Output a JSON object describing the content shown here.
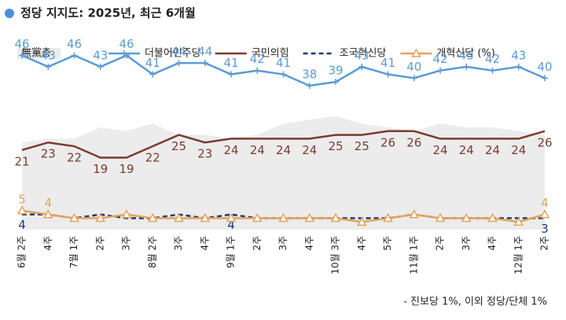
{
  "chart_data": {
    "type": "line",
    "title": "정당 지지도: 2025년, 최근 6개월",
    "footnote": "- 진보당 1%, 이외 정당/단체 1%",
    "categories": [
      "6월 2주",
      "4주",
      "7월 1주",
      "2주",
      "3주",
      "8월 2주",
      "3주",
      "4주",
      "9월 1주",
      "2주",
      "3주",
      "4주",
      "10월 3주",
      "4주",
      "5주",
      "11월 1주",
      "2주",
      "3주",
      "4주",
      "12월 1주",
      "2주"
    ],
    "ylim": [
      0,
      49
    ],
    "series": [
      {
        "name": "無黨층",
        "type": "area",
        "color": "#ececec",
        "values": [
          23,
          24,
          24,
          27,
          26,
          28,
          25,
          25,
          24,
          25,
          28,
          29,
          30,
          28,
          27,
          26,
          28,
          27,
          27,
          26,
          25
        ]
      },
      {
        "name": "더불어민주당",
        "color": "#5b9bd5",
        "marker": "plus",
        "values": [
          46,
          43,
          46,
          43,
          46,
          41,
          44,
          44,
          41,
          42,
          41,
          38,
          39,
          43,
          41,
          40,
          42,
          43,
          42,
          43,
          40
        ],
        "value_labels": [
          "46",
          "43",
          "46",
          "43",
          "46",
          "41",
          "44",
          "44",
          "41",
          "42",
          "41",
          "38",
          "39",
          "43",
          "41",
          "40",
          "42",
          "43",
          "42",
          "43",
          "40"
        ]
      },
      {
        "name": "국민의힘",
        "color": "#7b3b30",
        "values": [
          21,
          23,
          22,
          19,
          19,
          22,
          25,
          23,
          24,
          24,
          24,
          24,
          25,
          25,
          26,
          26,
          24,
          24,
          24,
          24,
          26
        ],
        "value_labels": [
          "21",
          "23",
          "22",
          "19",
          "19",
          "22",
          "25",
          "23",
          "24",
          "24",
          "24",
          "24",
          "25",
          "25",
          "26",
          "26",
          "24",
          "24",
          "24",
          "24",
          "26"
        ]
      },
      {
        "name": "조국혁신당",
        "color": "#1f3a6e",
        "dash": true,
        "values": [
          4,
          4,
          3,
          4,
          3,
          3,
          4,
          3,
          4,
          3,
          3,
          3,
          3,
          3,
          3,
          4,
          3,
          3,
          3,
          3,
          3
        ],
        "value_labels": [
          "4",
          null,
          null,
          null,
          null,
          null,
          null,
          null,
          "4",
          null,
          null,
          null,
          null,
          null,
          null,
          null,
          null,
          null,
          null,
          null,
          "3"
        ]
      },
      {
        "name": "개혁신당 (%)",
        "color": "#e2a35c",
        "marker": "triangle",
        "values": [
          5,
          4,
          3,
          3,
          4,
          3,
          3,
          3,
          3,
          3,
          3,
          3,
          3,
          2,
          3,
          4,
          3,
          3,
          3,
          2,
          4
        ],
        "value_labels": [
          "5",
          "4",
          null,
          null,
          null,
          null,
          null,
          null,
          null,
          null,
          null,
          null,
          null,
          null,
          null,
          null,
          null,
          null,
          null,
          null,
          "4"
        ]
      }
    ]
  }
}
